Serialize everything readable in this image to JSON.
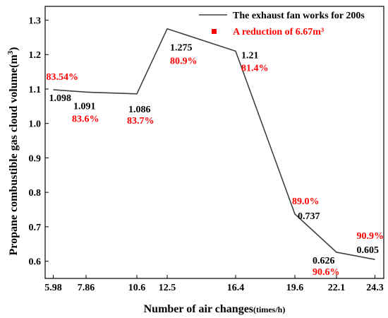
{
  "chart_data": {
    "type": "line",
    "xlabel_main": "Number of air changes",
    "xlabel_unit": "(times/h)",
    "ylabel_main": "Propane combustible gas cloud volume",
    "ylabel_unit_open": "(m",
    "ylabel_unit_sup": "3",
    "ylabel_unit_close": ")",
    "x_categories": [
      "5.98",
      "7.86",
      "10.6",
      "12.5",
      "16.4",
      "19.6",
      "22.1",
      "24.3"
    ],
    "y_ticks": [
      "0.6",
      "0.7",
      "0.8",
      "0.9",
      "1.0",
      "1.1",
      "1.2",
      "1.3"
    ],
    "ylim": [
      0.55,
      1.34
    ],
    "grid": false,
    "legend_position": "top-right",
    "series": [
      {
        "name": "The exhaust fan works for 200s",
        "color": "#404040",
        "points": [
          {
            "x": 5.98,
            "y": 1.098,
            "value_label": "1.098",
            "pct_label": "83.54%"
          },
          {
            "x": 7.86,
            "y": 1.091,
            "value_label": "1.091",
            "pct_label": "83.6%"
          },
          {
            "x": 10.6,
            "y": 1.086,
            "value_label": "1.086",
            "pct_label": "83.7%"
          },
          {
            "x": 12.5,
            "y": 1.275,
            "value_label": "1.275",
            "pct_label": "80.9%"
          },
          {
            "x": 16.4,
            "y": 1.21,
            "value_label": "1.21",
            "pct_label": "81.4%"
          },
          {
            "x": 19.6,
            "y": 0.737,
            "value_label": "0.737",
            "pct_label": "89.0%"
          },
          {
            "x": 22.1,
            "y": 0.626,
            "value_label": "0.626",
            "pct_label": "90.6%"
          },
          {
            "x": 24.3,
            "y": 0.605,
            "value_label": "0.605",
            "pct_label": "90.9%"
          }
        ]
      }
    ],
    "legend_secondary": {
      "label": "A reduction of 6.67m³",
      "color": "#ff0000"
    }
  }
}
